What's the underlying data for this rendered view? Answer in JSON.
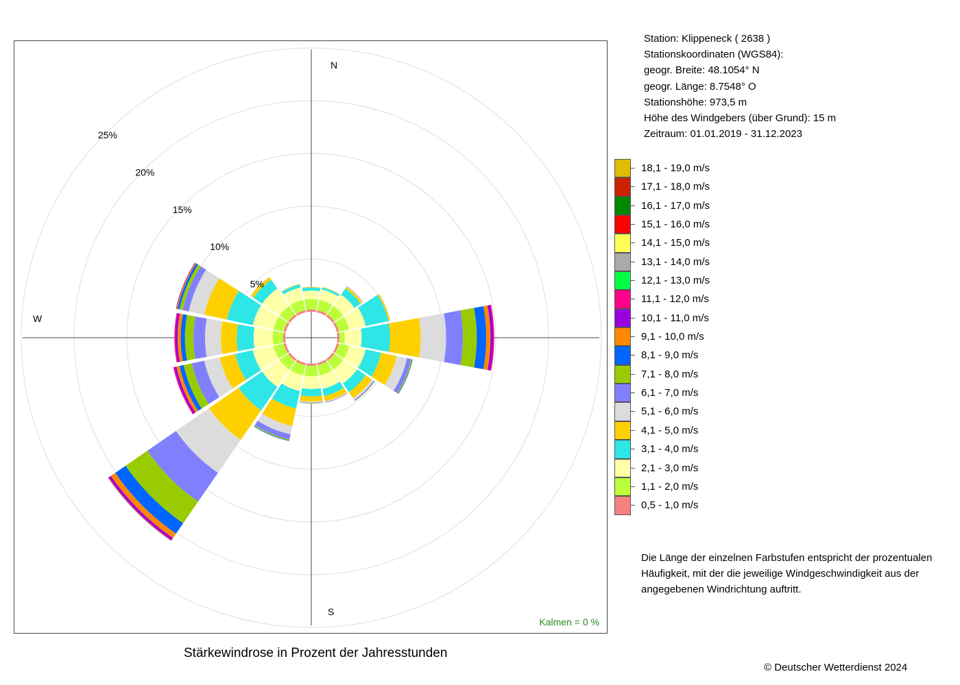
{
  "caption": "Stärkewindrose in Prozent der Jahresstunden",
  "copyright": "© Deutscher Wetterdienst  2024",
  "calm_text": "Kalmen  =  0 %",
  "station": {
    "lines": [
      "Station:  Klippeneck  ( 2638 )",
      "Stationskoordinaten (WGS84):",
      "geogr. Breite: 48.1054° N",
      "geogr. Länge:   8.7548° O",
      "Stationshöhe: 973,5 m",
      "Höhe des Windgebers (über Grund): 15 m",
      "Zeitraum: 01.01.2019 - 31.12.2023"
    ]
  },
  "legend_note": [
    "Die Länge der einzelnen Farbstufen entspricht der prozentualen",
    "Häufigkeit, mit der die jeweilige Windgeschwindigkeit aus der",
    "angegebenen Windrichtung auftritt."
  ],
  "chart_data": {
    "type": "polar-stacked-bar",
    "title": "Stärkewindrose in Prozent der Jahresstunden",
    "compass_labels": {
      "north": "N",
      "south": "S",
      "west": "W"
    },
    "radial_ticks": [
      "5%",
      "10%",
      "15%",
      "20%",
      "25%"
    ],
    "radial_tick_values": [
      5,
      10,
      15,
      20,
      25
    ],
    "calm_percent": 0,
    "directions": [
      "N",
      "NNE",
      "NE",
      "ENE",
      "E",
      "ESE",
      "SE",
      "SSE",
      "S",
      "SSW",
      "SW",
      "WSW",
      "W",
      "WNW",
      "NW",
      "NNW"
    ],
    "direction_angles_deg": [
      0,
      22.5,
      45,
      67.5,
      90,
      112.5,
      135,
      157.5,
      180,
      202.5,
      225,
      247.5,
      270,
      292.5,
      315,
      337.5
    ],
    "speed_classes": [
      {
        "label": "0,5 - 1,0 m/s",
        "color": "#f58080"
      },
      {
        "label": "1,1 - 2,0 m/s",
        "color": "#bbff3a"
      },
      {
        "label": "2,1 - 3,0 m/s",
        "color": "#ffffa8"
      },
      {
        "label": "3,1 - 4,0 m/s",
        "color": "#2ee6e6"
      },
      {
        "label": "4,1 - 5,0 m/s",
        "color": "#ffd000"
      },
      {
        "label": "5,1 - 6,0 m/s",
        "color": "#dcdcdc"
      },
      {
        "label": "6,1 - 7,0 m/s",
        "color": "#8080ff"
      },
      {
        "label": "7,1 - 8,0 m/s",
        "color": "#99cc00"
      },
      {
        "label": "8,1 - 9,0 m/s",
        "color": "#0066ff"
      },
      {
        "label": "9,1 - 10,0 m/s",
        "color": "#ff8800"
      },
      {
        "label": "10,1 - 11,0 m/s",
        "color": "#9900dd"
      },
      {
        "label": "11,1 - 12,0 m/s",
        "color": "#ff0088"
      },
      {
        "label": "12,1 - 13,0 m/s",
        "color": "#00ff44"
      },
      {
        "label": "13,1 - 14,0 m/s",
        "color": "#aaaaaa"
      },
      {
        "label": "14,1 - 15,0 m/s",
        "color": "#ffff55"
      },
      {
        "label": "15,1 - 16,0 m/s",
        "color": "#ff0000"
      },
      {
        "label": "16,1 - 17,0 m/s",
        "color": "#008800"
      },
      {
        "label": "17,1 - 18,0 m/s",
        "color": "#cc2200"
      },
      {
        "label": "18,1 - 19,0 m/s",
        "color": "#ddbb00"
      }
    ],
    "values_percent": [
      [
        0.2,
        1.0,
        0.8,
        0.3,
        0.05
      ],
      [
        0.2,
        1.0,
        1.0,
        0.2,
        0.05
      ],
      [
        0.2,
        1.0,
        1.3,
        0.7,
        0.2,
        0.05,
        0.03
      ],
      [
        0.2,
        1.0,
        1.6,
        2.2,
        0.15,
        0.05
      ],
      [
        0.2,
        0.5,
        1.6,
        2.7,
        2.9,
        2.4,
        1.6,
        1.3,
        0.9,
        0.4,
        0.25,
        0.1
      ],
      [
        0.2,
        1.0,
        1.6,
        1.5,
        1.5,
        1.0,
        0.4,
        0.1,
        0.05
      ],
      [
        0.2,
        1.0,
        1.6,
        1.0,
        0.7,
        0.2,
        0.1,
        0.03
      ],
      [
        0.2,
        1.0,
        1.3,
        0.7,
        0.5,
        0.1,
        0.05
      ],
      [
        0.2,
        1.0,
        1.2,
        0.7,
        0.5,
        0.1,
        0.05,
        0.03
      ],
      [
        0.2,
        1.0,
        1.5,
        1.7,
        1.7,
        0.8,
        0.5,
        0.1,
        0.05
      ],
      [
        0.2,
        1.0,
        2.0,
        2.7,
        3.4,
        3.8,
        3.3,
        2.5,
        1.2,
        0.5,
        0.2,
        0.1,
        0.03
      ],
      [
        0.2,
        1.0,
        2.0,
        1.7,
        1.5,
        1.5,
        1.2,
        0.8,
        0.4,
        0.3,
        0.2,
        0.1
      ],
      [
        0.2,
        1.0,
        1.8,
        1.6,
        1.5,
        1.5,
        1.1,
        0.8,
        0.4,
        0.3,
        0.2,
        0.1
      ],
      [
        0.2,
        1.0,
        2.0,
        2.5,
        2.2,
        1.5,
        0.6,
        0.3,
        0.2,
        0.1,
        0.05
      ],
      [
        0.2,
        1.0,
        2.0,
        1.0,
        0.3,
        0.05
      ],
      [
        0.2,
        1.0,
        1.2,
        0.3,
        0.05
      ]
    ],
    "rlim": [
      0,
      25
    ],
    "grid": true,
    "legend_position": "right"
  }
}
